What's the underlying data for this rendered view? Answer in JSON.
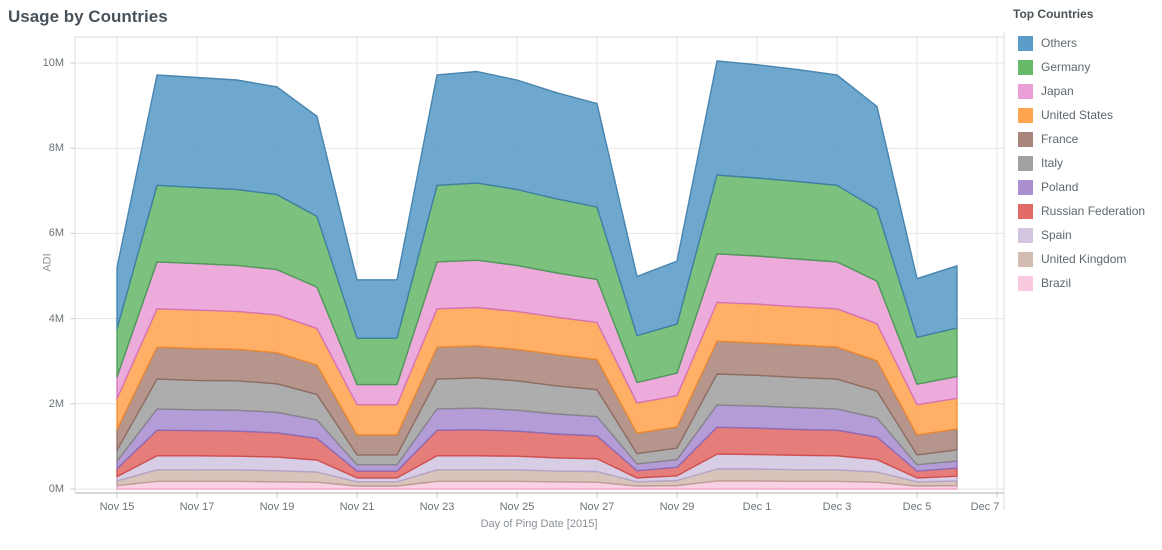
{
  "title": "Usage by Countries",
  "legend": {
    "title": "Top Countries",
    "position": "right"
  },
  "axes": {
    "y": {
      "title": "ADI",
      "ticks": [
        "0M",
        "2M",
        "4M",
        "6M",
        "8M",
        "10M"
      ],
      "tick_values": [
        0,
        2,
        4,
        6,
        8,
        10
      ]
    },
    "x": {
      "title": "Day of Ping Date [2015]",
      "ticks": [
        "Nov 15",
        "Nov 17",
        "Nov 19",
        "Nov 21",
        "Nov 23",
        "Nov 25",
        "Nov 27",
        "Nov 29",
        "Dec 1",
        "Dec 3",
        "Dec 5",
        "Dec 7"
      ]
    }
  },
  "colors": {
    "gridline": "#E4E4E4",
    "plot_border": "#D8D8D8",
    "axis_line": "#C2BEBE",
    "pane_divider": "#DCDCDC",
    "tick_mark": "#C9C9C9"
  },
  "chart_data": {
    "type": "area",
    "stacked": true,
    "title": "Usage by Countries",
    "xlabel": "Day of Ping Date [2015]",
    "ylabel": "ADI",
    "unit": "millions",
    "ylim": [
      0,
      10.7
    ],
    "grid": true,
    "legend_position": "right",
    "x_dates": [
      "Nov 15",
      "Nov 16",
      "Nov 17",
      "Nov 18",
      "Nov 19",
      "Nov 20",
      "Nov 21",
      "Nov 22",
      "Nov 23",
      "Nov 24",
      "Nov 25",
      "Nov 26",
      "Nov 27",
      "Nov 28",
      "Nov 29",
      "Nov 30",
      "Dec 1",
      "Dec 2",
      "Dec 3",
      "Dec 4",
      "Dec 5",
      "Dec 6"
    ],
    "stack_note": "series listed top-of-stack first (legend order); rendered bottom-to-top in reverse order",
    "series": [
      {
        "name": "Others",
        "color": "#5A9BC7",
        "border": "#3D7CA8",
        "values": [
          1.44,
          2.59,
          2.58,
          2.57,
          2.53,
          2.35,
          1.37,
          1.37,
          2.59,
          2.62,
          2.57,
          2.49,
          2.43,
          1.39,
          1.48,
          2.68,
          2.66,
          2.63,
          2.59,
          2.41,
          1.38,
          1.46
        ]
      },
      {
        "name": "Germany",
        "color": "#69B96B",
        "border": "#459A52",
        "values": [
          1.13,
          1.8,
          1.79,
          1.78,
          1.76,
          1.66,
          1.09,
          1.09,
          1.8,
          1.81,
          1.78,
          1.74,
          1.7,
          1.1,
          1.15,
          1.85,
          1.83,
          1.82,
          1.8,
          1.69,
          1.1,
          1.14
        ]
      },
      {
        "name": "Japan",
        "color": "#E99FD6",
        "border": "#D470BE",
        "values": [
          0.51,
          1.1,
          1.09,
          1.08,
          1.06,
          0.97,
          0.47,
          0.47,
          1.1,
          1.11,
          1.08,
          1.04,
          1.01,
          0.48,
          0.53,
          1.14,
          1.13,
          1.12,
          1.1,
          1.0,
          0.48,
          0.51
        ]
      },
      {
        "name": "United States",
        "color": "#FFA44F",
        "border": "#F28A2E",
        "values": [
          0.72,
          0.9,
          0.9,
          0.89,
          0.89,
          0.86,
          0.71,
          0.71,
          0.9,
          0.9,
          0.89,
          0.88,
          0.87,
          0.71,
          0.73,
          0.91,
          0.91,
          0.9,
          0.9,
          0.87,
          0.71,
          0.72
        ]
      },
      {
        "name": "France",
        "color": "#AA857B",
        "border": "#8F6A5F",
        "values": [
          0.49,
          0.75,
          0.75,
          0.74,
          0.73,
          0.69,
          0.47,
          0.47,
          0.75,
          0.75,
          0.74,
          0.73,
          0.71,
          0.48,
          0.5,
          0.77,
          0.76,
          0.76,
          0.75,
          0.71,
          0.47,
          0.49
        ]
      },
      {
        "name": "Italy",
        "color": "#A1A1A1",
        "border": "#858585",
        "values": [
          0.26,
          0.7,
          0.69,
          0.69,
          0.67,
          0.6,
          0.23,
          0.23,
          0.7,
          0.71,
          0.69,
          0.66,
          0.63,
          0.24,
          0.27,
          0.73,
          0.72,
          0.71,
          0.7,
          0.63,
          0.23,
          0.26
        ]
      },
      {
        "name": "Poland",
        "color": "#A98FD0",
        "border": "#8A6BBE",
        "values": [
          0.17,
          0.5,
          0.49,
          0.49,
          0.48,
          0.43,
          0.15,
          0.15,
          0.5,
          0.51,
          0.49,
          0.47,
          0.45,
          0.16,
          0.18,
          0.52,
          0.52,
          0.51,
          0.5,
          0.45,
          0.15,
          0.17
        ]
      },
      {
        "name": "Russian Federation",
        "color": "#E16A67",
        "border": "#D14844",
        "values": [
          0.19,
          0.6,
          0.59,
          0.59,
          0.57,
          0.51,
          0.16,
          0.16,
          0.6,
          0.61,
          0.59,
          0.56,
          0.54,
          0.17,
          0.2,
          0.63,
          0.62,
          0.61,
          0.6,
          0.53,
          0.16,
          0.19
        ]
      },
      {
        "name": "Spain",
        "color": "#D1C5E0",
        "border": "#B4A3CC",
        "values": [
          0.1,
          0.33,
          0.33,
          0.32,
          0.32,
          0.28,
          0.09,
          0.09,
          0.33,
          0.33,
          0.32,
          0.31,
          0.3,
          0.09,
          0.11,
          0.35,
          0.34,
          0.34,
          0.33,
          0.29,
          0.09,
          0.11
        ]
      },
      {
        "name": "United Kingdom",
        "color": "#D2BBB1",
        "border": "#B69A8D",
        "values": [
          0.11,
          0.27,
          0.27,
          0.27,
          0.26,
          0.24,
          0.1,
          0.1,
          0.27,
          0.27,
          0.27,
          0.25,
          0.25,
          0.1,
          0.12,
          0.28,
          0.28,
          0.27,
          0.27,
          0.24,
          0.1,
          0.11
        ]
      },
      {
        "name": "Brazil",
        "color": "#F9C9E0",
        "border": "#F0A3C8",
        "values": [
          0.08,
          0.18,
          0.18,
          0.18,
          0.17,
          0.16,
          0.07,
          0.07,
          0.18,
          0.18,
          0.18,
          0.17,
          0.16,
          0.07,
          0.08,
          0.19,
          0.19,
          0.18,
          0.18,
          0.16,
          0.07,
          0.08
        ]
      }
    ]
  }
}
